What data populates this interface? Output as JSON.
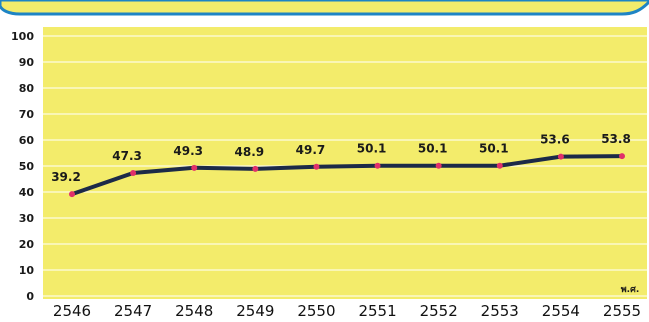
{
  "chart_data": {
    "type": "line",
    "title": "",
    "xlabel": "",
    "ylabel": "",
    "x_unit_label": "พ.ศ.",
    "x": [
      "2546",
      "2547",
      "2548",
      "2549",
      "2550",
      "2551",
      "2552",
      "2553",
      "2554",
      "2555"
    ],
    "series": [
      {
        "values": [
          39.2,
          47.3,
          49.3,
          48.9,
          49.7,
          50.1,
          50.1,
          50.1,
          53.6,
          53.8
        ]
      }
    ],
    "data_labels": [
      "39.2",
      "47.3",
      "49.3",
      "48.9",
      "49.7",
      "50.1",
      "50.1",
      "50.1",
      "53.6",
      "53.8"
    ],
    "yticks": [
      "0",
      "10",
      "20",
      "30",
      "40",
      "50",
      "60",
      "70",
      "80",
      "90",
      "100"
    ],
    "ylim": [
      0,
      100
    ],
    "grid": true,
    "legend": "none",
    "colors": {
      "plot_background": "#f3ec6b",
      "gridline": "#ffffff",
      "line": "#1c2a48",
      "marker": "#e0306a",
      "banner_border": "#1e84c4",
      "banner_fill": "#f3ec6b"
    }
  }
}
